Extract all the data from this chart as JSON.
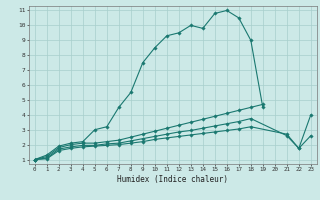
{
  "xlabel": "Humidex (Indice chaleur)",
  "bg_color": "#cce9e7",
  "line_color": "#1a7870",
  "grid_color": "#a8cfcc",
  "xlim": [
    -0.5,
    23.5
  ],
  "ylim": [
    0.7,
    11.3
  ],
  "xticks": [
    0,
    1,
    2,
    3,
    4,
    5,
    6,
    7,
    8,
    9,
    10,
    11,
    12,
    13,
    14,
    15,
    16,
    17,
    18,
    19,
    20,
    21,
    22,
    23
  ],
  "yticks": [
    1,
    2,
    3,
    4,
    5,
    6,
    7,
    8,
    9,
    10,
    11
  ],
  "curve1_x": [
    0,
    1,
    2,
    3,
    4,
    5,
    6,
    7,
    8,
    9,
    10,
    11,
    12,
    13,
    14,
    15,
    16,
    17,
    18,
    19
  ],
  "curve1_y": [
    1.0,
    1.3,
    1.9,
    2.1,
    2.2,
    3.0,
    3.2,
    4.5,
    5.5,
    7.5,
    8.5,
    9.3,
    9.5,
    10.0,
    9.8,
    10.8,
    11.0,
    10.5,
    9.0,
    4.5
  ],
  "curve2_x": [
    0,
    1,
    2,
    3,
    4,
    5,
    6,
    7,
    8,
    9,
    10,
    11,
    12,
    13,
    14,
    15,
    16,
    17,
    18,
    19
  ],
  "curve2_y": [
    1.0,
    1.2,
    1.8,
    2.0,
    2.1,
    2.1,
    2.2,
    2.3,
    2.5,
    2.7,
    2.9,
    3.1,
    3.3,
    3.5,
    3.7,
    3.9,
    4.1,
    4.3,
    4.5,
    4.7
  ],
  "curve3_x": [
    0,
    1,
    2,
    3,
    4,
    5,
    6,
    7,
    8,
    9,
    10,
    11,
    12,
    13,
    14,
    15,
    16,
    17,
    18,
    21,
    22,
    23
  ],
  "curve3_y": [
    1.0,
    1.1,
    1.7,
    1.85,
    1.95,
    1.95,
    2.05,
    2.1,
    2.25,
    2.4,
    2.55,
    2.7,
    2.85,
    2.95,
    3.1,
    3.25,
    3.4,
    3.55,
    3.75,
    2.6,
    1.75,
    4.0
  ],
  "curve4_x": [
    0,
    1,
    2,
    3,
    4,
    5,
    6,
    7,
    8,
    9,
    10,
    11,
    12,
    13,
    14,
    15,
    16,
    17,
    18,
    21,
    22,
    23
  ],
  "curve4_y": [
    1.0,
    1.05,
    1.6,
    1.75,
    1.85,
    1.9,
    1.95,
    2.0,
    2.1,
    2.2,
    2.35,
    2.45,
    2.55,
    2.65,
    2.75,
    2.85,
    2.95,
    3.05,
    3.2,
    2.7,
    1.75,
    2.6
  ]
}
